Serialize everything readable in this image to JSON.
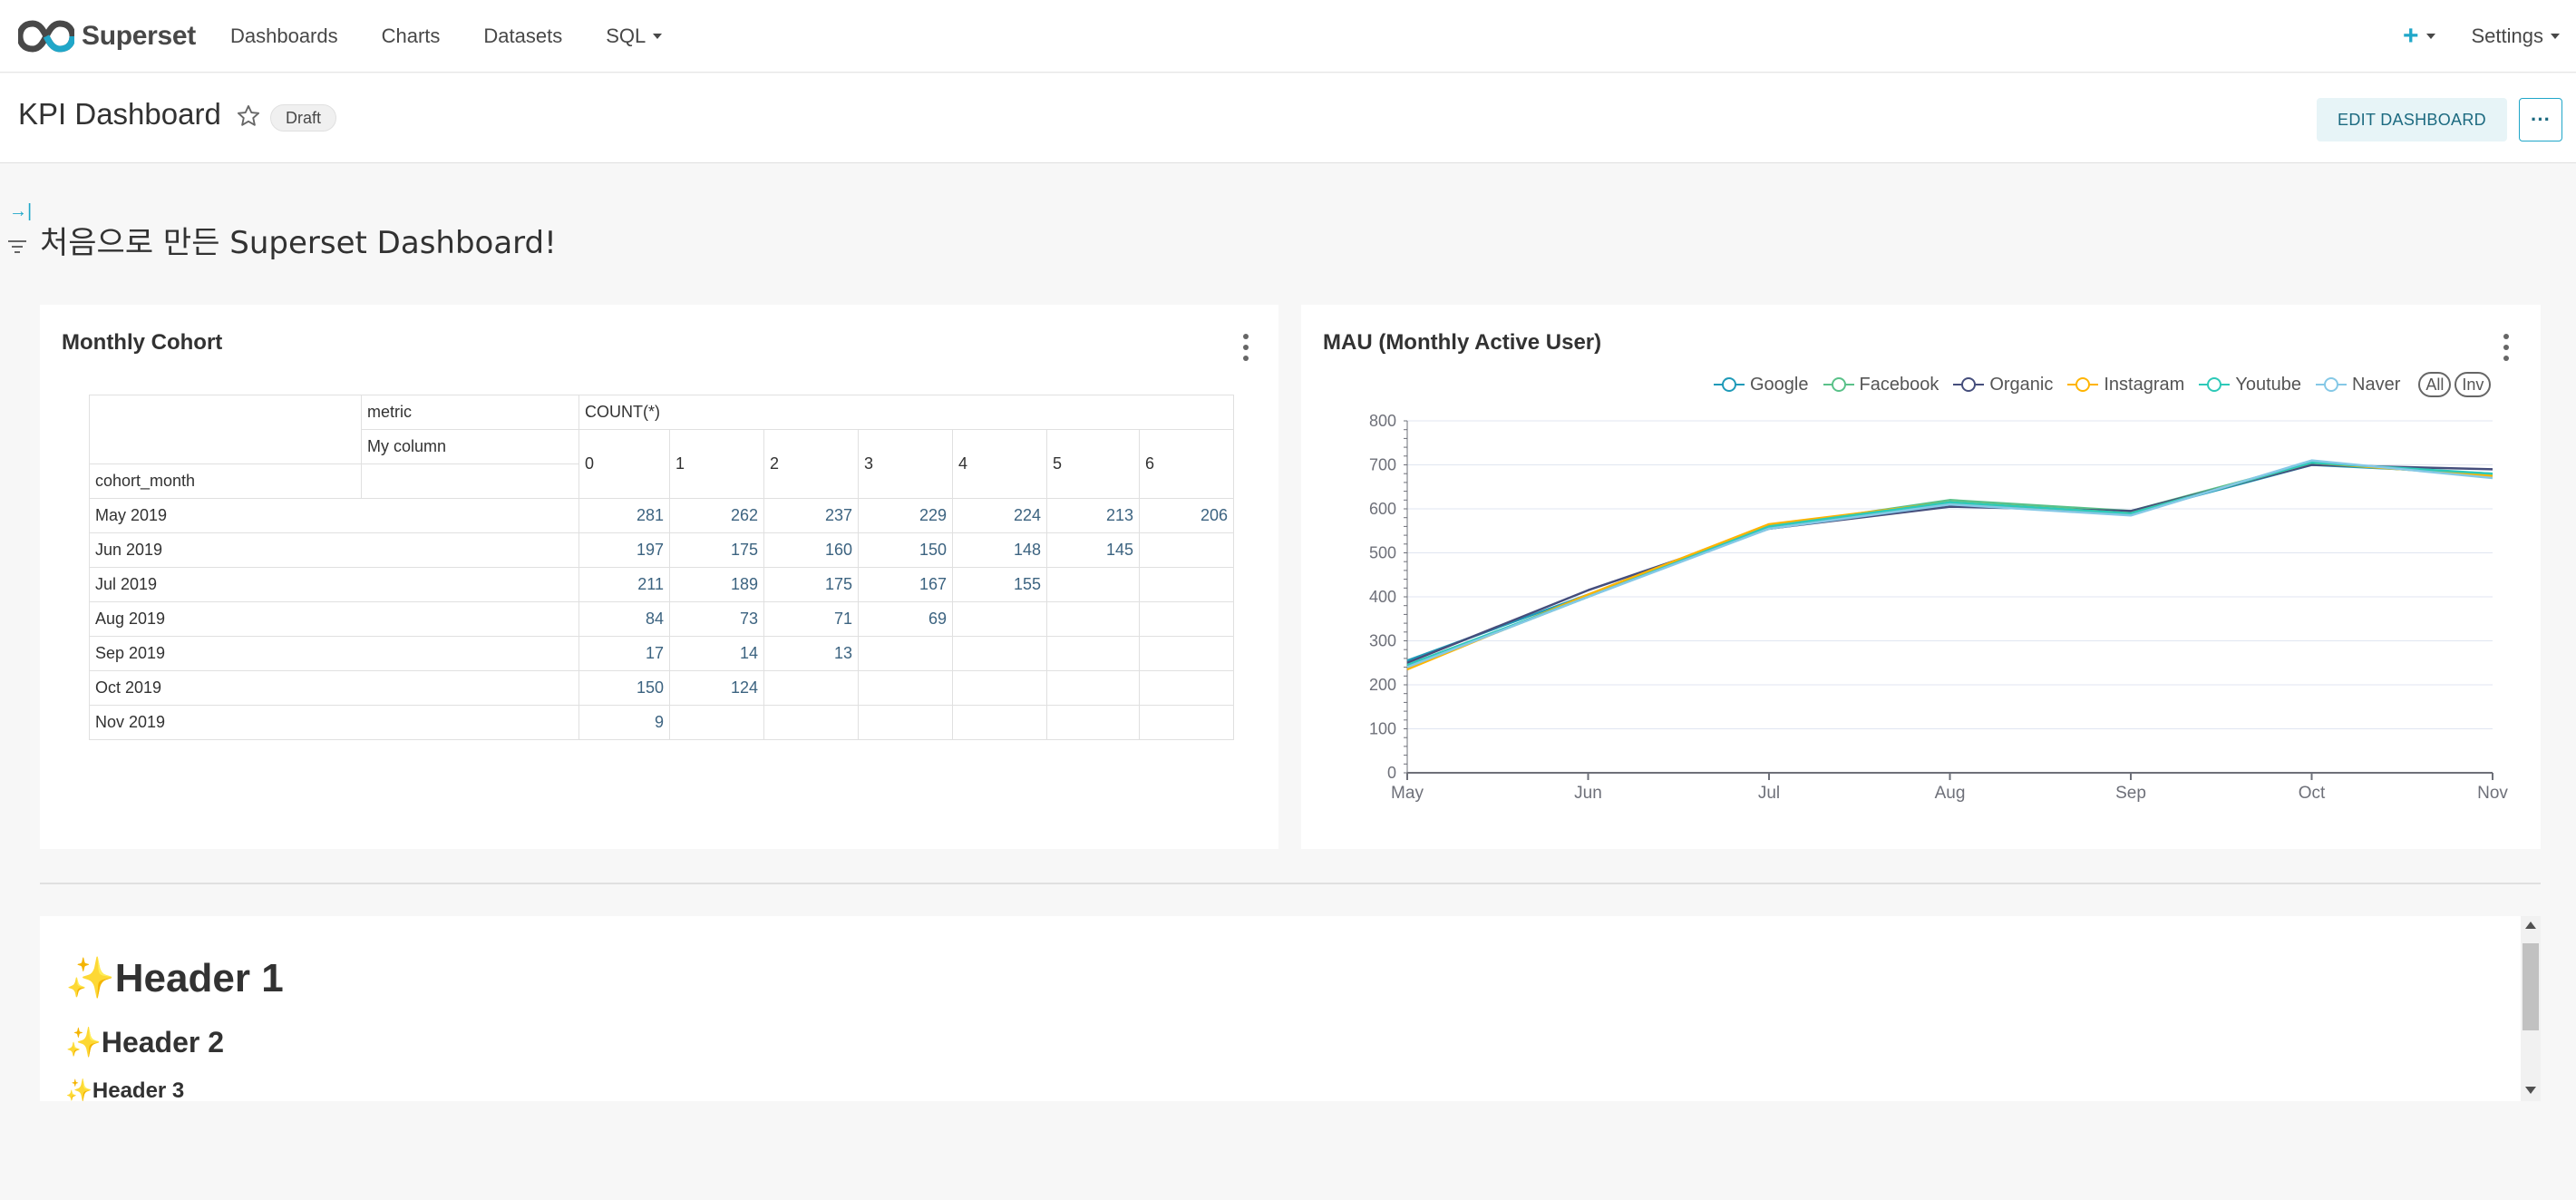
{
  "navbar": {
    "brand_name": "Superset",
    "items": [
      {
        "label": "Dashboards"
      },
      {
        "label": "Charts"
      },
      {
        "label": "Datasets"
      },
      {
        "label": "SQL"
      }
    ],
    "plus_label": "+",
    "settings_label": "Settings"
  },
  "header": {
    "title": "KPI Dashboard",
    "badge": "Draft",
    "edit_label": "EDIT DASHBOARD",
    "more_label": "···"
  },
  "filter_bar": {
    "expand_glyph": "→|"
  },
  "page_heading": "처음으로 만든 Superset Dashboard!",
  "cohort": {
    "title": "Monthly Cohort",
    "metric_label": "metric",
    "metric_value": "COUNT(*)",
    "column_label": "My column",
    "row_label": "cohort_month",
    "columns": [
      "0",
      "1",
      "2",
      "3",
      "4",
      "5",
      "6"
    ],
    "rows": [
      {
        "month": "May 2019",
        "values": [
          "281",
          "262",
          "237",
          "229",
          "224",
          "213",
          "206"
        ]
      },
      {
        "month": "Jun 2019",
        "values": [
          "197",
          "175",
          "160",
          "150",
          "148",
          "145",
          ""
        ]
      },
      {
        "month": "Jul 2019",
        "values": [
          "211",
          "189",
          "175",
          "167",
          "155",
          "",
          ""
        ]
      },
      {
        "month": "Aug 2019",
        "values": [
          "84",
          "73",
          "71",
          "69",
          "",
          "",
          ""
        ]
      },
      {
        "month": "Sep 2019",
        "values": [
          "17",
          "14",
          "13",
          "",
          "",
          "",
          ""
        ]
      },
      {
        "month": "Oct 2019",
        "values": [
          "150",
          "124",
          "",
          "",
          "",
          "",
          ""
        ]
      },
      {
        "month": "Nov 2019",
        "values": [
          "9",
          "",
          "",
          "",
          "",
          "",
          ""
        ]
      }
    ]
  },
  "mau": {
    "title": "MAU (Monthly Active User)",
    "legend_all": "All",
    "legend_inv": "Inv"
  },
  "chart_data": {
    "type": "line",
    "title": "MAU (Monthly Active User)",
    "categories": [
      "May",
      "Jun",
      "Jul",
      "Aug",
      "Sep",
      "Oct",
      "Nov"
    ],
    "ylim": [
      0,
      800
    ],
    "yticks": [
      "0",
      "100",
      "200",
      "300",
      "400",
      "500",
      "600",
      "700",
      "800"
    ],
    "grid": true,
    "legend_position": "top-right",
    "series": [
      {
        "name": "Google",
        "color": "#1f9ab8",
        "values": [
          255,
          405,
          555,
          610,
          590,
          700,
          680
        ]
      },
      {
        "name": "Facebook",
        "color": "#5ac189",
        "values": [
          240,
          400,
          560,
          620,
          595,
          705,
          675
        ]
      },
      {
        "name": "Organic",
        "color": "#454e7c",
        "values": [
          250,
          415,
          555,
          605,
          595,
          700,
          690
        ]
      },
      {
        "name": "Instagram",
        "color": "#ffb400",
        "values": [
          235,
          405,
          565,
          615,
          590,
          705,
          675
        ]
      },
      {
        "name": "Youtube",
        "color": "#2dc9b8",
        "values": [
          245,
          400,
          560,
          615,
          590,
          705,
          680
        ]
      },
      {
        "name": "Naver",
        "color": "#85c8e6",
        "values": [
          240,
          400,
          555,
          610,
          585,
          710,
          670
        ]
      }
    ]
  },
  "markdown": {
    "h1": "✨Header 1",
    "h2": "✨Header 2",
    "h3": "✨Header 3"
  }
}
